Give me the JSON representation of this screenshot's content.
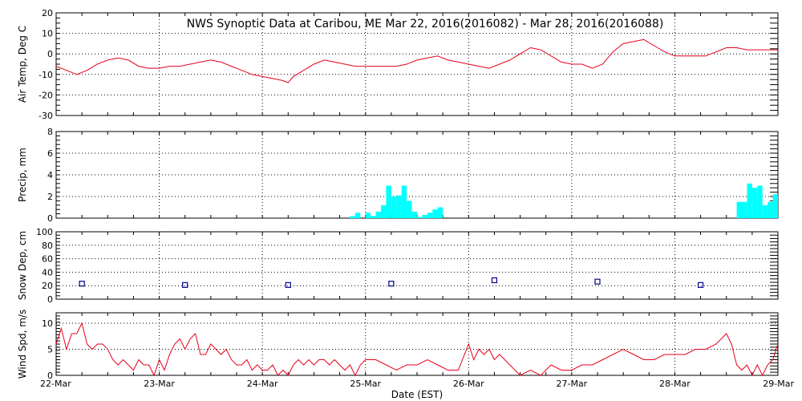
{
  "title": "NWS Synoptic Data at Caribou, ME   Mar 22, 2016(2016082) - Mar 28, 2016(2016088)",
  "xlabel": "Date (EST)",
  "x_ticks": [
    "22-Mar",
    "23-Mar",
    "24-Mar",
    "25-Mar",
    "26-Mar",
    "27-Mar",
    "28-Mar",
    "29-Mar"
  ],
  "colors": {
    "temp": "#e8001c",
    "precip": "#00ffff",
    "snow": "#00008b",
    "wind": "#e8001c",
    "grid": "#000000"
  },
  "chart_data": [
    {
      "type": "line",
      "ylabel": "Air Temp, Deg C",
      "ylim": [
        -30,
        20
      ],
      "y_ticks": [
        "20",
        "10",
        "0",
        "-10",
        "-20",
        "-30"
      ],
      "x_unit": "days since 22-Mar 00:00 EST",
      "grid": true,
      "series": [
        {
          "name": "Air Temp",
          "x": [
            0,
            0.1,
            0.2,
            0.3,
            0.4,
            0.5,
            0.6,
            0.7,
            0.8,
            0.9,
            1.0,
            1.1,
            1.2,
            1.3,
            1.4,
            1.5,
            1.6,
            1.7,
            1.8,
            1.9,
            2.0,
            2.1,
            2.2,
            2.25,
            2.3,
            2.4,
            2.5,
            2.6,
            2.7,
            2.8,
            2.9,
            3.0,
            3.1,
            3.2,
            3.3,
            3.4,
            3.5,
            3.6,
            3.7,
            3.8,
            3.9,
            4.0,
            4.1,
            4.2,
            4.3,
            4.4,
            4.5,
            4.6,
            4.7,
            4.8,
            4.9,
            5.0,
            5.1,
            5.2,
            5.3,
            5.4,
            5.5,
            5.6,
            5.7,
            5.8,
            5.9,
            6.0,
            6.1,
            6.2,
            6.3,
            6.4,
            6.5,
            6.6,
            6.7,
            6.8,
            6.9,
            7.0
          ],
          "values": [
            -6,
            -8,
            -10,
            -8,
            -5,
            -3,
            -2,
            -3,
            -6,
            -7,
            -7,
            -6,
            -6,
            -5,
            -4,
            -3,
            -4,
            -6,
            -8,
            -10,
            -11,
            -12,
            -13,
            -14,
            -11,
            -8,
            -5,
            -3,
            -4,
            -5,
            -6,
            -6,
            -6,
            -6,
            -6,
            -5,
            -3,
            -2,
            -1,
            -3,
            -4,
            -5,
            -6,
            -7,
            -5,
            -3,
            0,
            3,
            2,
            -1,
            -4,
            -5,
            -5,
            -7,
            -5,
            1,
            5,
            6,
            7,
            4,
            1,
            -1,
            -1,
            -1,
            -1,
            1,
            3,
            3,
            2,
            2,
            2,
            2
          ]
        }
      ]
    },
    {
      "type": "bar",
      "ylabel": "Precip, mm",
      "ylim": [
        0,
        8
      ],
      "y_ticks": [
        "8",
        "6",
        "4",
        "2",
        "0"
      ],
      "x_unit": "days since 22-Mar 00:00 EST",
      "grid": true,
      "series": [
        {
          "name": "Precip",
          "x": [
            2.85,
            2.9,
            2.95,
            3.0,
            3.05,
            3.1,
            3.15,
            3.2,
            3.25,
            3.3,
            3.35,
            3.4,
            3.45,
            3.5,
            3.55,
            3.6,
            3.65,
            3.7,
            3.75,
            3.8,
            6.6,
            6.65,
            6.7,
            6.75,
            6.8,
            6.85,
            6.9,
            6.95
          ],
          "values": [
            0.2,
            0.5,
            0,
            0.5,
            0.2,
            0.6,
            1.2,
            3.0,
            2.0,
            2.1,
            3.0,
            1.6,
            0.6,
            0.1,
            0.3,
            0.5,
            0.8,
            1.0,
            0,
            0,
            1.5,
            1.5,
            3.2,
            2.8,
            3.0,
            1.2,
            1.5,
            2.2
          ]
        }
      ]
    },
    {
      "type": "scatter",
      "ylabel": "Snow Dep, cm",
      "ylim": [
        0,
        100
      ],
      "y_ticks": [
        "100",
        "80",
        "60",
        "40",
        "20",
        "0"
      ],
      "x_unit": "days since 22-Mar 00:00 EST",
      "grid": true,
      "series": [
        {
          "name": "Snow Depth",
          "x": [
            0.25,
            1.25,
            2.25,
            3.25,
            4.25,
            5.25,
            6.25
          ],
          "values": [
            23,
            21,
            21,
            23,
            28,
            26,
            21
          ]
        }
      ]
    },
    {
      "type": "line",
      "ylabel": "Wind Spd, m/s",
      "ylim": [
        0,
        12
      ],
      "y_ticks": [
        "10",
        "5",
        "0"
      ],
      "x_unit": "days since 22-Mar 00:00 EST",
      "grid": true,
      "series": [
        {
          "name": "Wind Speed",
          "x": [
            0,
            0.05,
            0.1,
            0.15,
            0.2,
            0.25,
            0.3,
            0.35,
            0.4,
            0.45,
            0.5,
            0.55,
            0.6,
            0.65,
            0.7,
            0.75,
            0.8,
            0.85,
            0.9,
            0.95,
            1.0,
            1.05,
            1.1,
            1.15,
            1.2,
            1.25,
            1.3,
            1.35,
            1.4,
            1.45,
            1.5,
            1.55,
            1.6,
            1.65,
            1.7,
            1.75,
            1.8,
            1.85,
            1.9,
            1.95,
            2.0,
            2.05,
            2.1,
            2.15,
            2.2,
            2.25,
            2.3,
            2.35,
            2.4,
            2.45,
            2.5,
            2.55,
            2.6,
            2.65,
            2.7,
            2.75,
            2.8,
            2.85,
            2.9,
            2.95,
            3.0,
            3.1,
            3.2,
            3.3,
            3.4,
            3.5,
            3.6,
            3.7,
            3.8,
            3.9,
            4.0,
            4.05,
            4.1,
            4.15,
            4.2,
            4.25,
            4.3,
            4.35,
            4.4,
            4.5,
            4.6,
            4.7,
            4.8,
            4.9,
            5.0,
            5.1,
            5.2,
            5.3,
            5.4,
            5.5,
            5.6,
            5.7,
            5.8,
            5.9,
            6.0,
            6.1,
            6.2,
            6.3,
            6.4,
            6.5,
            6.55,
            6.6,
            6.65,
            6.7,
            6.75,
            6.8,
            6.85,
            6.9,
            6.95,
            7.0
          ],
          "values": [
            6,
            9,
            5,
            8,
            8,
            10,
            6,
            5,
            6,
            6,
            5,
            3,
            2,
            3,
            2,
            1,
            3,
            2,
            2,
            0,
            3,
            1,
            4,
            6,
            7,
            5,
            7,
            8,
            4,
            4,
            6,
            5,
            4,
            5,
            3,
            2,
            2,
            3,
            1,
            2,
            1,
            1,
            2,
            0,
            1,
            0,
            2,
            3,
            2,
            3,
            2,
            3,
            3,
            2,
            3,
            2,
            1,
            2,
            0,
            2,
            3,
            3,
            2,
            1,
            2,
            2,
            3,
            2,
            1,
            1,
            6,
            3,
            5,
            4,
            5,
            3,
            4,
            3,
            2,
            0,
            1,
            0,
            2,
            1,
            1,
            2,
            2,
            3,
            4,
            5,
            4,
            3,
            3,
            4,
            4,
            4,
            5,
            5,
            6,
            8,
            6,
            2,
            1,
            2,
            0,
            2,
            0,
            2,
            3,
            6
          ]
        }
      ]
    }
  ]
}
